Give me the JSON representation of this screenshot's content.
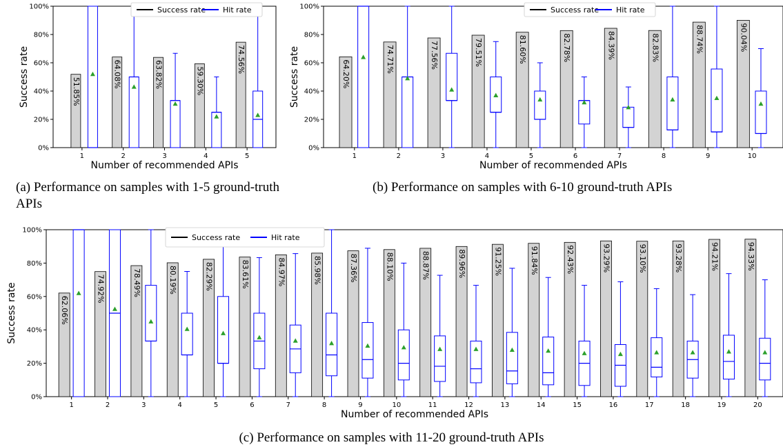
{
  "colors": {
    "bar_fill": "#d3d3d3",
    "bar_edge": "#000000",
    "box": "#0000ff",
    "mean_marker": "#2ca02c",
    "success_legend": "#000000",
    "hit_legend": "#0000ff"
  },
  "captions": {
    "a": "(a)  Performance on samples with 1-5 ground-truth APIs",
    "b": "(b)  Performance on samples with 6-10 ground-truth APIs",
    "c": "(c)  Performance on samples with 11-20 ground-truth APIs"
  },
  "chart_data": [
    {
      "id": "a",
      "type": "bar+box",
      "xlabel": "Number of recommended APIs",
      "ylabel": "Success rate",
      "ylim": [
        0,
        100
      ],
      "yticks": [
        "0%",
        "20%",
        "40%",
        "60%",
        "80%",
        "100%"
      ],
      "legend": {
        "placement": "top-center",
        "entries": [
          "Success rate",
          "Hit rate"
        ]
      },
      "categories": [
        "1",
        "2",
        "3",
        "4",
        "5"
      ],
      "success_rate": [
        51.85,
        64.08,
        63.82,
        59.3,
        74.56
      ],
      "bar_labels": [
        "51.85%",
        "64.08%",
        "63.82%",
        "59.30%",
        "74.56%"
      ],
      "hit_rate_boxes": [
        {
          "whislo": 0,
          "q1": 0,
          "med": 0,
          "q3": 100,
          "whishi": 100,
          "mean": 52
        },
        {
          "whislo": 0,
          "q1": 0,
          "med": 50,
          "q3": 50,
          "whishi": 100,
          "mean": 43
        },
        {
          "whislo": 0,
          "q1": 0,
          "med": 33.3,
          "q3": 33.3,
          "whishi": 66.7,
          "mean": 31
        },
        {
          "whislo": 0,
          "q1": 0,
          "med": 25,
          "q3": 25,
          "whishi": 50,
          "mean": 22
        },
        {
          "whislo": 0,
          "q1": 0,
          "med": 20,
          "q3": 40,
          "whishi": 100,
          "mean": 23
        }
      ]
    },
    {
      "id": "b",
      "type": "bar+box",
      "xlabel": "Number of recommended APIs",
      "ylabel": "Success rate",
      "ylim": [
        0,
        100
      ],
      "yticks": [
        "0%",
        "20%",
        "40%",
        "60%",
        "80%",
        "100%"
      ],
      "legend": {
        "placement": "top-center",
        "entries": [
          "Success rate",
          "Hit rate"
        ]
      },
      "categories": [
        "1",
        "2",
        "3",
        "4",
        "5",
        "6",
        "7",
        "8",
        "9",
        "10"
      ],
      "success_rate": [
        64.2,
        74.71,
        77.56,
        79.51,
        81.6,
        82.78,
        84.39,
        82.83,
        88.74,
        90.04
      ],
      "bar_labels": [
        "64.20%",
        "74.71%",
        "77.56%",
        "79.51%",
        "81.60%",
        "82.78%",
        "84.39%",
        "82.83%",
        "88.74%",
        "90.04%"
      ],
      "hit_rate_boxes": [
        {
          "whislo": 0,
          "q1": 0,
          "med": 100,
          "q3": 100,
          "whishi": 100,
          "mean": 64
        },
        {
          "whislo": 0,
          "q1": 0,
          "med": 50,
          "q3": 50,
          "whishi": 100,
          "mean": 49
        },
        {
          "whislo": 0,
          "q1": 33.3,
          "med": 33.3,
          "q3": 66.7,
          "whishi": 100,
          "mean": 41
        },
        {
          "whislo": 0,
          "q1": 25,
          "med": 25,
          "q3": 50,
          "whishi": 75,
          "mean": 37
        },
        {
          "whislo": 0,
          "q1": 20,
          "med": 20,
          "q3": 40,
          "whishi": 60,
          "mean": 34
        },
        {
          "whislo": 0,
          "q1": 16.7,
          "med": 33.3,
          "q3": 33.3,
          "whishi": 50,
          "mean": 32
        },
        {
          "whislo": 0,
          "q1": 14.3,
          "med": 14.3,
          "q3": 28.6,
          "whishi": 42.9,
          "mean": 28.5
        },
        {
          "whislo": 0,
          "q1": 12.5,
          "med": 12.5,
          "q3": 50,
          "whishi": 100,
          "mean": 34
        },
        {
          "whislo": 0,
          "q1": 11.1,
          "med": 11.1,
          "q3": 55.6,
          "whishi": 100,
          "mean": 35
        },
        {
          "whislo": 0,
          "q1": 10,
          "med": 10,
          "q3": 40,
          "whishi": 70,
          "mean": 31
        }
      ]
    },
    {
      "id": "c",
      "type": "bar+box",
      "xlabel": "Number of recommended APIs",
      "ylabel": "Success rate",
      "ylim": [
        0,
        100
      ],
      "yticks": [
        "0%",
        "20%",
        "40%",
        "60%",
        "80%",
        "100%"
      ],
      "legend": {
        "placement": "top-center",
        "entries": [
          "Success rate",
          "Hit rate"
        ]
      },
      "categories": [
        "1",
        "2",
        "3",
        "4",
        "5",
        "6",
        "7",
        "8",
        "9",
        "10",
        "11",
        "12",
        "13",
        "14",
        "15",
        "16",
        "17",
        "18",
        "19",
        "20"
      ],
      "success_rate": [
        62.06,
        74.92,
        78.49,
        80.19,
        82.29,
        83.61,
        84.97,
        85.98,
        87.36,
        88.1,
        88.87,
        89.96,
        91.25,
        91.84,
        92.43,
        93.29,
        93.1,
        93.28,
        94.21,
        94.33
      ],
      "bar_labels": [
        "62.06%",
        "74.92%",
        "78.49%",
        "80.19%",
        "82.29%",
        "83.61%",
        "84.97%",
        "85.98%",
        "87.36%",
        "88.10%",
        "88.87%",
        "89.96%",
        "91.25%",
        "91.84%",
        "92.43%",
        "93.29%",
        "93.10%",
        "93.28%",
        "94.21%",
        "94.33%"
      ],
      "hit_rate_boxes": [
        {
          "whislo": 0,
          "q1": 0,
          "med": 100,
          "q3": 100,
          "whishi": 100,
          "mean": 62
        },
        {
          "whislo": 0,
          "q1": 0,
          "med": 50,
          "q3": 100,
          "whishi": 100,
          "mean": 52.5
        },
        {
          "whislo": 0,
          "q1": 33.3,
          "med": 33.3,
          "q3": 66.7,
          "whishi": 100,
          "mean": 45
        },
        {
          "whislo": 0,
          "q1": 25,
          "med": 25,
          "q3": 50,
          "whishi": 75,
          "mean": 40.5
        },
        {
          "whislo": 0,
          "q1": 20,
          "med": 20,
          "q3": 60,
          "whishi": 100,
          "mean": 38
        },
        {
          "whislo": 0,
          "q1": 16.7,
          "med": 33.3,
          "q3": 50,
          "whishi": 83.3,
          "mean": 35.5
        },
        {
          "whislo": 0,
          "q1": 14.3,
          "med": 28.6,
          "q3": 42.9,
          "whishi": 85.7,
          "mean": 33.5
        },
        {
          "whislo": 0,
          "q1": 12.5,
          "med": 25,
          "q3": 50,
          "whishi": 100,
          "mean": 32
        },
        {
          "whislo": 0,
          "q1": 11.1,
          "med": 22.2,
          "q3": 44.4,
          "whishi": 88.9,
          "mean": 30.5
        },
        {
          "whislo": 0,
          "q1": 10,
          "med": 20,
          "q3": 40,
          "whishi": 80,
          "mean": 29.5
        },
        {
          "whislo": 0,
          "q1": 9.1,
          "med": 18.2,
          "q3": 36.4,
          "whishi": 72.7,
          "mean": 28.5
        },
        {
          "whislo": 0,
          "q1": 8.3,
          "med": 16.7,
          "q3": 33.3,
          "whishi": 66.7,
          "mean": 28.5
        },
        {
          "whislo": 0,
          "q1": 7.7,
          "med": 15.4,
          "q3": 38.5,
          "whishi": 76.9,
          "mean": 28
        },
        {
          "whislo": 0,
          "q1": 7.1,
          "med": 14.3,
          "q3": 35.7,
          "whishi": 71.4,
          "mean": 27.5
        },
        {
          "whislo": 0,
          "q1": 6.7,
          "med": 20,
          "q3": 33.3,
          "whishi": 66.7,
          "mean": 26
        },
        {
          "whislo": 0,
          "q1": 6.2,
          "med": 18.8,
          "q3": 31.2,
          "whishi": 68.8,
          "mean": 25.5
        },
        {
          "whislo": 0,
          "q1": 11.8,
          "med": 17.6,
          "q3": 35.3,
          "whishi": 64.7,
          "mean": 26.5
        },
        {
          "whislo": 0,
          "q1": 11.1,
          "med": 22.2,
          "q3": 33.3,
          "whishi": 61.1,
          "mean": 26.5
        },
        {
          "whislo": 0,
          "q1": 10.5,
          "med": 21.1,
          "q3": 36.8,
          "whishi": 73.7,
          "mean": 27
        },
        {
          "whislo": 0,
          "q1": 10,
          "med": 20,
          "q3": 35,
          "whishi": 70,
          "mean": 26.5
        }
      ]
    }
  ]
}
